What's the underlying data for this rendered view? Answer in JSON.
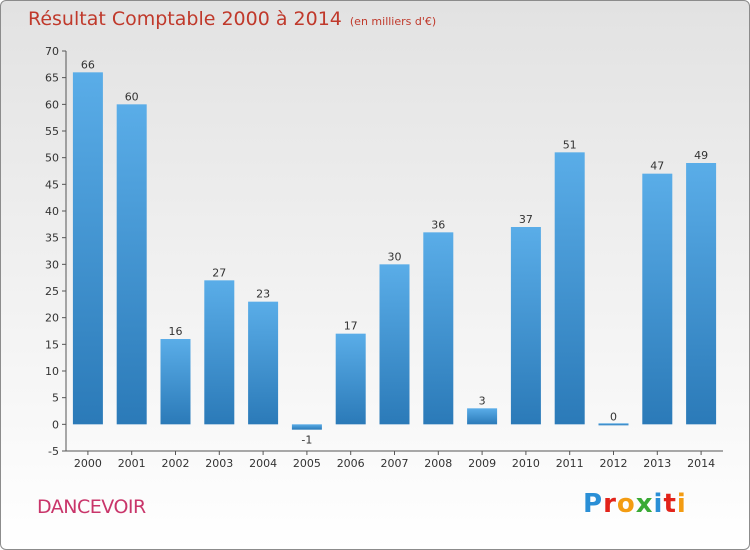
{
  "title": {
    "main": "Résultat Comptable 2000 à 2014",
    "unit": "(en milliers d'€)"
  },
  "commune": "DANCEVOIR",
  "logo": {
    "text": "Proxiti",
    "letters": [
      {
        "ch": "P",
        "color": "#2a8fd6"
      },
      {
        "ch": "r",
        "color": "#e2231a"
      },
      {
        "ch": "o",
        "color": "#f39c12"
      },
      {
        "ch": "x",
        "color": "#3aaa35"
      },
      {
        "ch": "i",
        "color": "#2a8fd6"
      },
      {
        "ch": "t",
        "color": "#e2231a"
      },
      {
        "ch": "i",
        "color": "#f39c12"
      }
    ]
  },
  "colors": {
    "bar_top": "#5aade8",
    "bar_bottom": "#2b7ab8",
    "title": "#c0392b",
    "commune": "#c9356a"
  },
  "chart_data": {
    "type": "bar",
    "categories": [
      "2000",
      "2001",
      "2002",
      "2003",
      "2004",
      "2005",
      "2006",
      "2007",
      "2008",
      "2009",
      "2010",
      "2011",
      "2012",
      "2013",
      "2014"
    ],
    "values": [
      66,
      60,
      16,
      27,
      23,
      -1,
      17,
      30,
      36,
      3,
      37,
      51,
      0,
      47,
      49
    ],
    "value_labels": [
      "66",
      "60",
      "16",
      "27",
      "23",
      "-1",
      "17",
      "30",
      "36",
      "3",
      "37",
      "51",
      "0",
      "47",
      "49"
    ],
    "ylim": [
      -5,
      70
    ],
    "yticks": [
      -5,
      0,
      5,
      10,
      15,
      20,
      25,
      30,
      35,
      40,
      45,
      50,
      55,
      60,
      65,
      70
    ],
    "grid": false,
    "legend": "none"
  }
}
